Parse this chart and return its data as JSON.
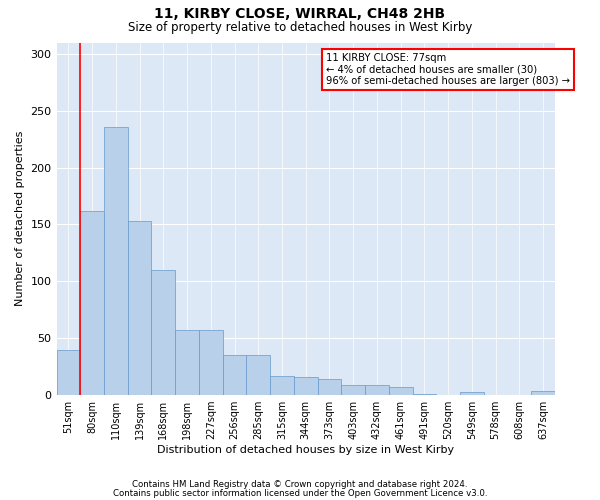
{
  "title": "11, KIRBY CLOSE, WIRRAL, CH48 2HB",
  "subtitle": "Size of property relative to detached houses in West Kirby",
  "xlabel": "Distribution of detached houses by size in West Kirby",
  "ylabel": "Number of detached properties",
  "bar_color": "#b8d0ea",
  "bar_edgecolor": "#6699cc",
  "background_color": "#dce8f5",
  "categories": [
    "51sqm",
    "80sqm",
    "110sqm",
    "139sqm",
    "168sqm",
    "198sqm",
    "227sqm",
    "256sqm",
    "285sqm",
    "315sqm",
    "344sqm",
    "373sqm",
    "403sqm",
    "432sqm",
    "461sqm",
    "491sqm",
    "520sqm",
    "549sqm",
    "578sqm",
    "608sqm",
    "637sqm"
  ],
  "values": [
    40,
    162,
    236,
    153,
    110,
    57,
    57,
    35,
    35,
    17,
    16,
    14,
    9,
    9,
    7,
    1,
    0,
    3,
    0,
    0,
    4
  ],
  "ylim": [
    0,
    310
  ],
  "yticks": [
    0,
    50,
    100,
    150,
    200,
    250,
    300
  ],
  "vline_x": 0.5,
  "property_label": "11 KIRBY CLOSE: 77sqm",
  "annotation_line1": "← 4% of detached houses are smaller (30)",
  "annotation_line2": "96% of semi-detached houses are larger (803) →",
  "footer1": "Contains HM Land Registry data © Crown copyright and database right 2024.",
  "footer2": "Contains public sector information licensed under the Open Government Licence v3.0."
}
